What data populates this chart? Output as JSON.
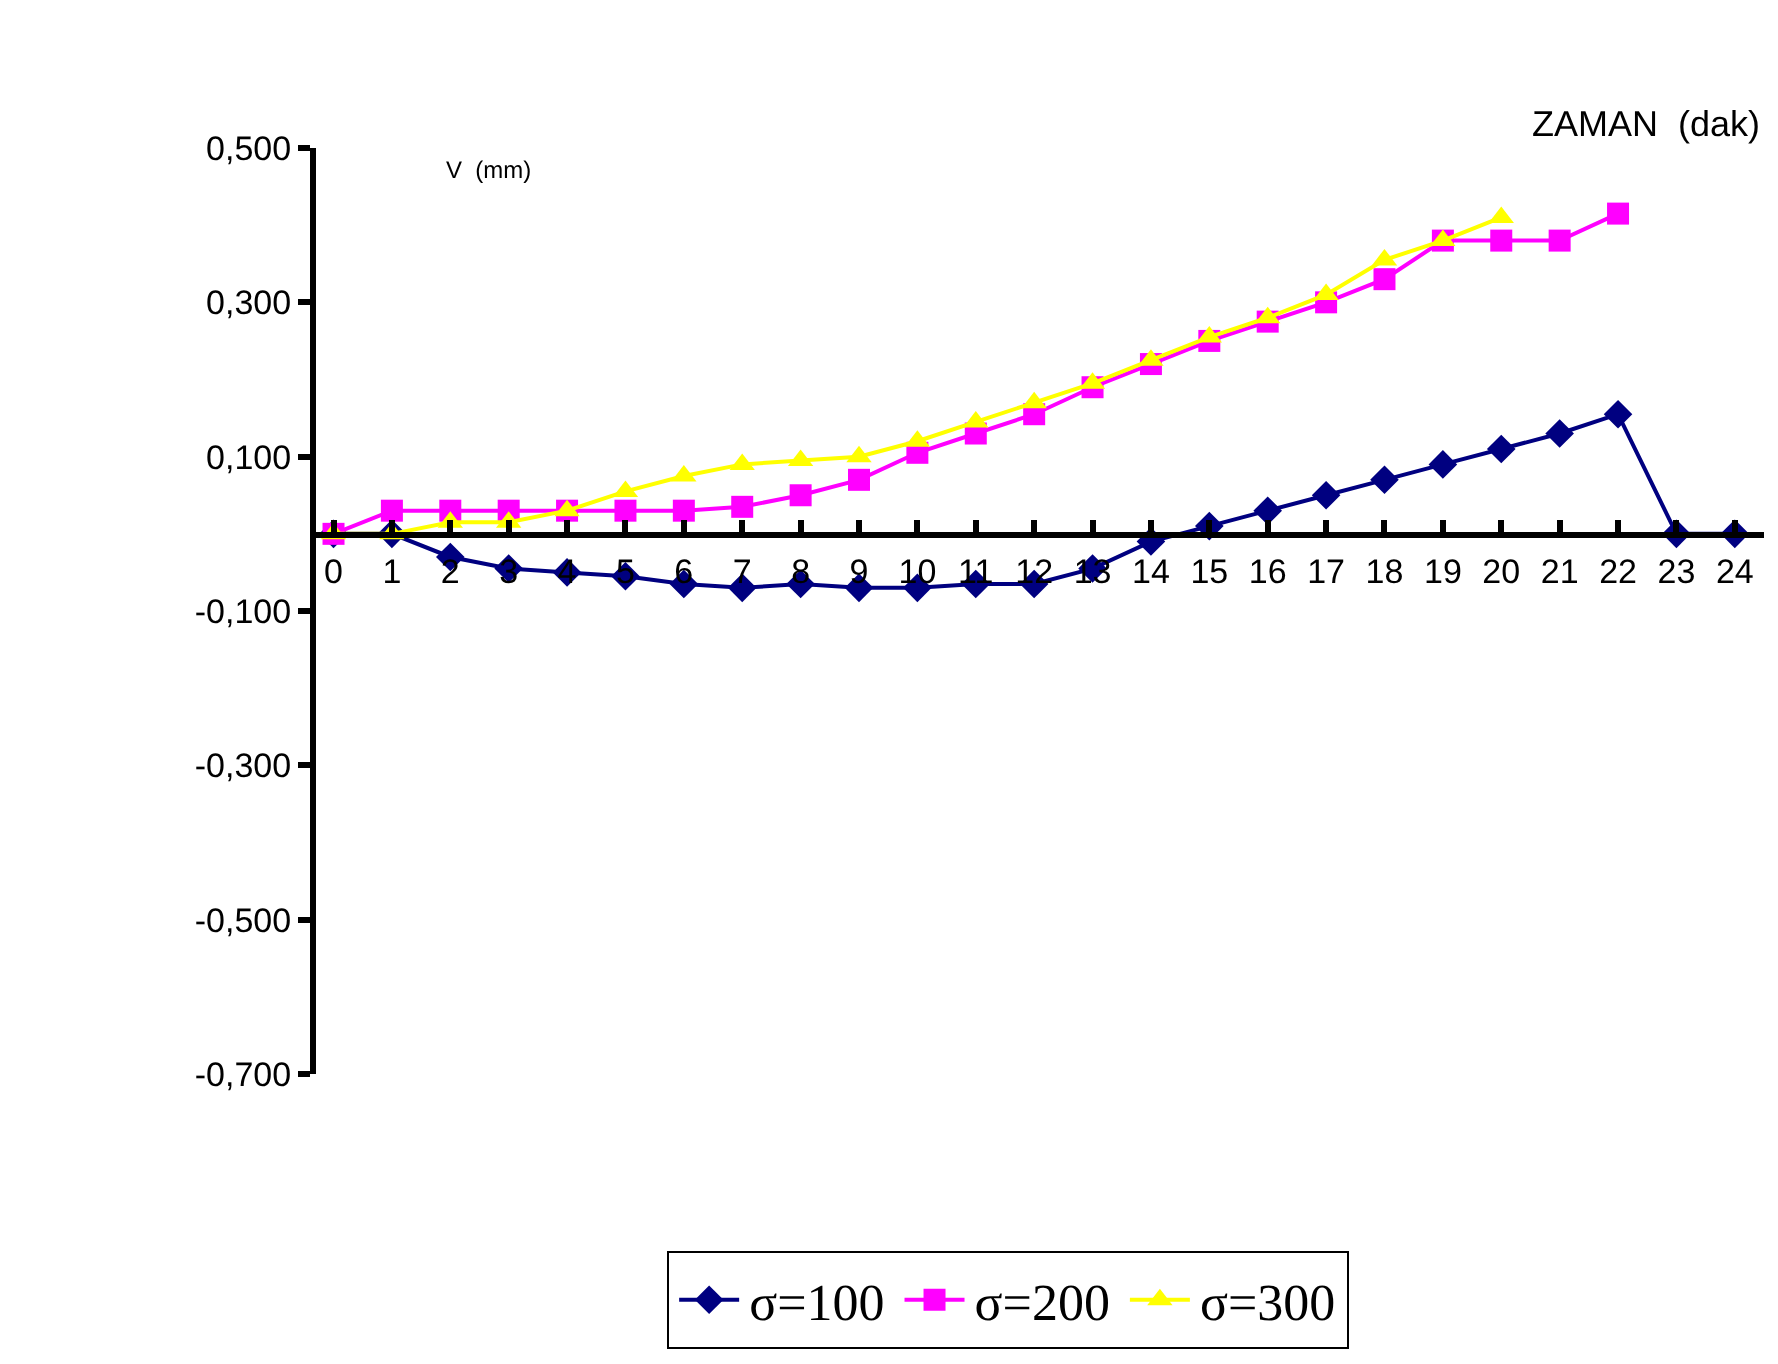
{
  "chart_data": {
    "type": "line",
    "xlabel": "ZAMAN  (dak)",
    "ylabel": "V  (mm)",
    "x": [
      0,
      1,
      2,
      3,
      4,
      5,
      6,
      7,
      8,
      9,
      10,
      11,
      12,
      13,
      14,
      15,
      16,
      17,
      18,
      19,
      20,
      21,
      22,
      23,
      24
    ],
    "xlim": [
      -0.3,
      24.5
    ],
    "xticks": [
      0,
      1,
      2,
      3,
      4,
      5,
      6,
      7,
      8,
      9,
      10,
      11,
      12,
      13,
      14,
      15,
      16,
      17,
      18,
      19,
      20,
      21,
      22,
      23,
      24
    ],
    "ylim": [
      -0.7,
      0.5
    ],
    "yticks": [
      {
        "value": 0.5,
        "label": "0,500"
      },
      {
        "value": 0.3,
        "label": "0,300"
      },
      {
        "value": 0.1,
        "label": "0,100"
      },
      {
        "value": -0.1,
        "label": "-0,100"
      },
      {
        "value": -0.3,
        "label": "-0,300"
      },
      {
        "value": -0.5,
        "label": "-0,500"
      },
      {
        "value": -0.7,
        "label": "-0,700"
      }
    ],
    "legend": "bottom",
    "line_style": "solid",
    "series": [
      {
        "name": "σ=100",
        "color": "#000080",
        "marker": "diamond",
        "values": [
          0,
          0,
          -0.03,
          -0.045,
          -0.05,
          -0.055,
          -0.065,
          -0.07,
          -0.065,
          -0.07,
          -0.07,
          -0.065,
          -0.065,
          -0.045,
          -0.01,
          0.01,
          0.03,
          0.05,
          0.07,
          0.09,
          0.11,
          0.13,
          0.155,
          0,
          0
        ]
      },
      {
        "name": "σ=200",
        "color": "#ff00ff",
        "marker": "square",
        "values": [
          0,
          0.03,
          0.03,
          0.03,
          0.03,
          0.03,
          0.03,
          0.035,
          0.05,
          0.07,
          0.105,
          0.13,
          0.155,
          0.19,
          0.22,
          0.25,
          0.275,
          0.3,
          0.33,
          0.38,
          0.38,
          0.38,
          0.415,
          null,
          null
        ]
      },
      {
        "name": "σ=300",
        "color": "#ffff00",
        "marker": "triangle",
        "values": [
          0,
          0,
          0.015,
          0.015,
          0.03,
          0.055,
          0.075,
          0.09,
          0.095,
          0.1,
          0.12,
          0.145,
          0.17,
          0.195,
          0.225,
          0.255,
          0.28,
          0.31,
          0.355,
          0.38,
          0.41,
          null,
          null,
          null,
          null
        ]
      }
    ]
  }
}
